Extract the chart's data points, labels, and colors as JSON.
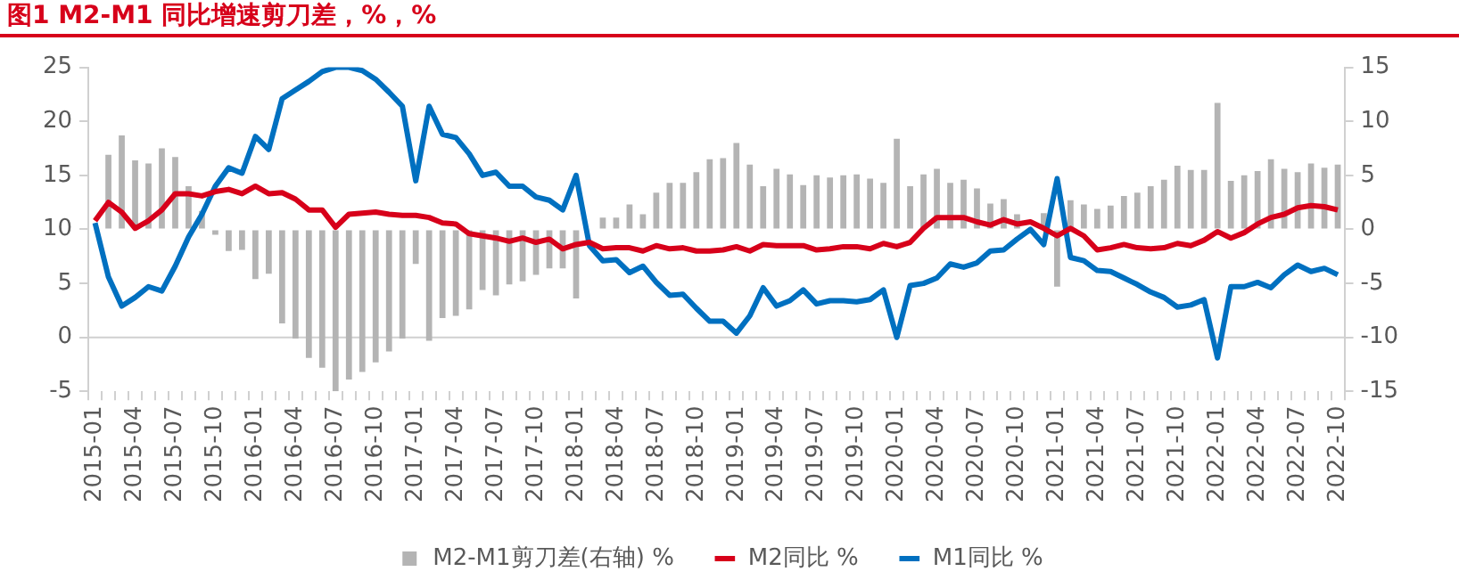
{
  "chart_data": {
    "type": "line",
    "title": "图1  M2-M1 同比增速剪刀差，%，%",
    "categories": [
      "2015-01",
      null,
      null,
      "2015-04",
      null,
      null,
      "2015-07",
      null,
      null,
      "2015-10",
      null,
      null,
      "2016-01",
      null,
      null,
      "2016-04",
      null,
      null,
      "2016-07",
      null,
      null,
      "2016-10",
      null,
      null,
      "2017-01",
      null,
      null,
      "2017-04",
      null,
      null,
      "2017-07",
      null,
      null,
      "2017-10",
      null,
      null,
      "2018-01",
      null,
      null,
      "2018-04",
      null,
      null,
      "2018-07",
      null,
      null,
      "2018-10",
      null,
      null,
      "2019-01",
      null,
      null,
      "2019-04",
      null,
      null,
      "2019-07",
      null,
      null,
      "2019-10",
      null,
      null,
      "2020-01",
      null,
      null,
      "2020-04",
      null,
      null,
      "2020-07",
      null,
      null,
      "2020-10",
      null,
      null,
      "2021-01",
      null,
      null,
      "2021-04",
      null,
      null,
      "2021-07",
      null,
      null,
      "2021-10",
      null,
      null,
      "2022-01",
      null,
      null,
      "2022-04",
      null,
      null,
      "2022-07",
      null,
      null,
      "2022-10"
    ],
    "series": [
      {
        "name": "M2-M1剪刀差(右轴) %",
        "type": "bar",
        "axis": "y2",
        "color": "#b4b4b4",
        "values": [
          null,
          6.9,
          8.7,
          6.4,
          6.1,
          7.5,
          6.7,
          4.0,
          1.7,
          -0.5,
          -2.0,
          -1.9,
          -4.6,
          -4.1,
          -8.7,
          -10.1,
          -11.9,
          -12.8,
          -15.0,
          -13.9,
          -13.2,
          -12.3,
          -11.3,
          -10.1,
          -3.2,
          -10.3,
          -8.2,
          -8.0,
          -7.4,
          -5.6,
          -6.1,
          -5.1,
          -4.8,
          -4.2,
          -3.6,
          -3.6,
          -6.4,
          null,
          1.1,
          1.1,
          2.3,
          1.4,
          3.4,
          4.3,
          4.3,
          5.3,
          6.5,
          6.6,
          8.0,
          6.0,
          4.0,
          5.6,
          5.1,
          4.1,
          5.0,
          4.8,
          5.0,
          5.1,
          4.7,
          4.3,
          8.4,
          4.0,
          5.1,
          5.6,
          4.3,
          4.6,
          3.8,
          2.4,
          2.8,
          1.4,
          null,
          1.5,
          -5.3,
          2.7,
          2.3,
          1.9,
          2.2,
          3.1,
          3.4,
          4.0,
          4.6,
          5.9,
          5.5,
          5.5,
          11.7,
          4.5,
          5.0,
          5.4,
          6.5,
          5.6,
          5.3,
          6.1,
          5.7,
          6.0
        ]
      },
      {
        "name": "M2同比 %",
        "color": "#d7001a",
        "values": [
          10.8,
          12.5,
          11.6,
          10.1,
          10.8,
          11.8,
          13.3,
          13.3,
          13.1,
          13.5,
          13.7,
          13.3,
          14.0,
          13.3,
          13.4,
          12.8,
          11.8,
          11.8,
          10.2,
          11.4,
          11.5,
          11.6,
          11.4,
          11.3,
          11.3,
          11.1,
          10.6,
          10.5,
          9.6,
          9.4,
          9.2,
          8.9,
          9.2,
          8.8,
          9.1,
          8.2,
          8.6,
          8.8,
          8.2,
          8.3,
          8.3,
          8.0,
          8.5,
          8.2,
          8.3,
          8.0,
          8.0,
          8.1,
          8.4,
          8.0,
          8.6,
          8.5,
          8.5,
          8.5,
          8.1,
          8.2,
          8.4,
          8.4,
          8.2,
          8.7,
          8.4,
          8.8,
          10.1,
          11.1,
          11.1,
          11.1,
          10.7,
          10.4,
          10.9,
          10.5,
          10.7,
          10.1,
          9.4,
          10.1,
          9.4,
          8.1,
          8.3,
          8.6,
          8.3,
          8.2,
          8.3,
          8.7,
          8.5,
          9.0,
          9.8,
          9.2,
          9.7,
          10.5,
          11.1,
          11.4,
          12.0,
          12.2,
          12.1,
          11.8
        ]
      },
      {
        "name": "M1同比 %",
        "color": "#0070c0",
        "values": [
          10.6,
          5.6,
          2.9,
          3.7,
          4.7,
          4.3,
          6.6,
          9.3,
          11.4,
          14.0,
          15.7,
          15.2,
          18.6,
          17.4,
          22.1,
          22.9,
          23.7,
          24.6,
          25.0,
          25.0,
          24.7,
          23.9,
          22.7,
          21.4,
          14.5,
          21.4,
          18.8,
          18.5,
          17.0,
          15.0,
          15.3,
          14.0,
          14.0,
          13.0,
          12.7,
          11.8,
          15.0,
          8.5,
          7.1,
          7.2,
          6.0,
          6.6,
          5.1,
          3.9,
          4.0,
          2.7,
          1.5,
          1.5,
          0.4,
          2.0,
          4.6,
          2.9,
          3.4,
          4.4,
          3.1,
          3.4,
          3.4,
          3.3,
          3.5,
          4.4,
          0.0,
          4.8,
          5.0,
          5.5,
          6.8,
          6.5,
          6.9,
          8.0,
          8.1,
          9.1,
          10.0,
          8.6,
          14.7,
          7.4,
          7.1,
          6.2,
          6.1,
          5.5,
          4.9,
          4.2,
          3.7,
          2.8,
          3.0,
          3.5,
          -1.9,
          4.7,
          4.7,
          5.1,
          4.6,
          5.8,
          6.7,
          6.1,
          6.4,
          5.8
        ]
      }
    ],
    "ylim": [
      -5,
      25
    ],
    "yticks": [
      -5,
      0,
      5,
      10,
      15,
      20,
      25
    ],
    "y2lim": [
      -15,
      15
    ],
    "y2ticks": [
      -15,
      -10,
      -5,
      0,
      5,
      10,
      15
    ],
    "ref_lines": [
      {
        "axis": "y",
        "value": 0,
        "color": "#d0d0d0"
      }
    ],
    "grid": false,
    "legend": "bottom",
    "marker": "none",
    "line_style": "solid"
  }
}
